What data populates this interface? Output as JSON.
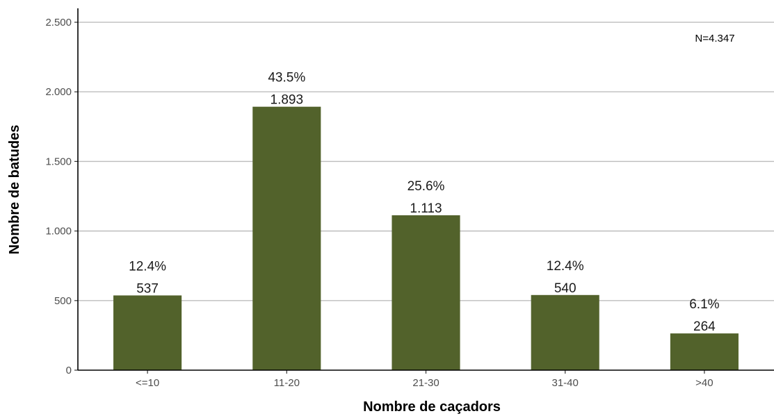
{
  "chart_data": {
    "type": "bar",
    "categories": [
      "<=10",
      "11-20",
      "21-30",
      "31-40",
      ">40"
    ],
    "values": [
      537,
      1893,
      1113,
      540,
      264
    ],
    "value_labels": [
      "537",
      "1.893",
      "1.113",
      "540",
      "264"
    ],
    "percent_labels": [
      "12.4%",
      "43.5%",
      "25.6%",
      "12.4%",
      "6.1%"
    ],
    "xlabel": "Nombre de caçadors",
    "ylabel": "Nombre de batudes",
    "ylim": [
      0,
      2600
    ],
    "yticks": [
      0,
      500,
      1000,
      1500,
      2000,
      2500
    ],
    "ytick_labels": [
      "0",
      "500",
      "1.000",
      "1.500",
      "2.000",
      "2.500"
    ],
    "annotation": "N=4.347",
    "annotation_placement": "top-right",
    "grid": "horizontal",
    "bar_color": "#52622b",
    "grid_color": "#bdbdbd",
    "axis_color": "#000000"
  }
}
